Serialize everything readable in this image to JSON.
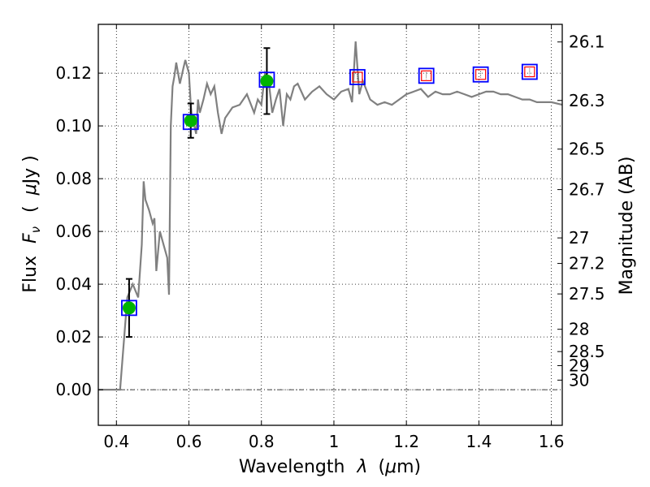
{
  "chart_data": {
    "type": "line",
    "x_label_parts": {
      "text": "Wavelength",
      "symbol": "λ",
      "unit_open": "(",
      "unit_mu": "μ",
      "unit_rest": "m)"
    },
    "y_label_parts": {
      "text": "Flux",
      "symbol": "F",
      "subscript": "ν",
      "unit_open": "(",
      "unit_mu": "μ",
      "unit_rest": "Jy )"
    },
    "y2_label": "Magnitude (AB)",
    "xlim": [
      0.35,
      1.63
    ],
    "ylim": [
      -0.0135,
      0.1385
    ],
    "x_ticks": [
      {
        "value": 0.4,
        "label": "0.4"
      },
      {
        "value": 0.6,
        "label": "0.6"
      },
      {
        "value": 0.8,
        "label": "0.8"
      },
      {
        "value": 1.0,
        "label": "1"
      },
      {
        "value": 1.2,
        "label": "1.2"
      },
      {
        "value": 1.4,
        "label": "1.4"
      },
      {
        "value": 1.6,
        "label": "1.6"
      }
    ],
    "y_ticks": [
      {
        "value": 0.0,
        "label": "0.00"
      },
      {
        "value": 0.02,
        "label": "0.02"
      },
      {
        "value": 0.04,
        "label": "0.04"
      },
      {
        "value": 0.06,
        "label": "0.06"
      },
      {
        "value": 0.08,
        "label": "0.08"
      },
      {
        "value": 0.1,
        "label": "0.10"
      },
      {
        "value": 0.12,
        "label": "0.12"
      }
    ],
    "y2_ticks": [
      {
        "mag": 26.1,
        "label": "26.1"
      },
      {
        "mag": 26.3,
        "label": "26.3"
      },
      {
        "mag": 26.5,
        "label": "26.5"
      },
      {
        "mag": 26.7,
        "label": "26.7"
      },
      {
        "mag": 27.0,
        "label": "27"
      },
      {
        "mag": 27.2,
        "label": "27.2"
      },
      {
        "mag": 27.5,
        "label": "27.5"
      },
      {
        "mag": 28.0,
        "label": "28"
      },
      {
        "mag": 28.5,
        "label": "28.5"
      },
      {
        "mag": 29.0,
        "label": "29"
      },
      {
        "mag": 30.0,
        "label": "30"
      }
    ],
    "grid": true,
    "zero_line": true,
    "series": [
      {
        "kind": "model_spectrum",
        "color": "#808080",
        "x": [
          0.35,
          0.41,
          0.43,
          0.445,
          0.46,
          0.47,
          0.475,
          0.48,
          0.49,
          0.5,
          0.505,
          0.51,
          0.52,
          0.53,
          0.54,
          0.545,
          0.55,
          0.555,
          0.56,
          0.565,
          0.575,
          0.585,
          0.59,
          0.6,
          0.605,
          0.61,
          0.615,
          0.62,
          0.625,
          0.63,
          0.64,
          0.65,
          0.66,
          0.67,
          0.68,
          0.69,
          0.7,
          0.72,
          0.74,
          0.76,
          0.78,
          0.79,
          0.8,
          0.81,
          0.82,
          0.83,
          0.84,
          0.85,
          0.86,
          0.87,
          0.88,
          0.89,
          0.9,
          0.92,
          0.94,
          0.96,
          0.98,
          1.0,
          1.02,
          1.04,
          1.05,
          1.06,
          1.07,
          1.08,
          1.1,
          1.12,
          1.14,
          1.16,
          1.18,
          1.2,
          1.22,
          1.24,
          1.26,
          1.28,
          1.3,
          1.32,
          1.34,
          1.36,
          1.38,
          1.4,
          1.42,
          1.44,
          1.46,
          1.48,
          1.5,
          1.52,
          1.54,
          1.56,
          1.58,
          1.6,
          1.63
        ],
        "y": [
          0.0,
          0.0,
          0.035,
          0.04,
          0.035,
          0.055,
          0.079,
          0.072,
          0.068,
          0.063,
          0.065,
          0.045,
          0.06,
          0.055,
          0.05,
          0.036,
          0.1,
          0.115,
          0.119,
          0.124,
          0.116,
          0.122,
          0.125,
          0.12,
          0.108,
          0.1,
          0.1,
          0.097,
          0.11,
          0.105,
          0.11,
          0.116,
          0.112,
          0.115,
          0.105,
          0.097,
          0.103,
          0.107,
          0.108,
          0.112,
          0.105,
          0.11,
          0.108,
          0.12,
          0.117,
          0.105,
          0.11,
          0.114,
          0.1,
          0.112,
          0.11,
          0.115,
          0.116,
          0.11,
          0.113,
          0.115,
          0.112,
          0.11,
          0.113,
          0.114,
          0.109,
          0.132,
          0.112,
          0.117,
          0.11,
          0.108,
          0.109,
          0.108,
          0.11,
          0.112,
          0.113,
          0.114,
          0.111,
          0.113,
          0.112,
          0.112,
          0.113,
          0.112,
          0.111,
          0.112,
          0.113,
          0.113,
          0.112,
          0.112,
          0.111,
          0.11,
          0.11,
          0.109,
          0.109,
          0.109,
          0.108
        ]
      },
      {
        "kind": "observed",
        "marker": "circle",
        "color": "#00b400",
        "x": [
          0.435,
          0.605,
          0.815
        ],
        "y": [
          0.031,
          0.102,
          0.117
        ],
        "yerr": [
          0.011,
          0.0065,
          0.0125
        ]
      },
      {
        "kind": "model_photometry",
        "marker": "square",
        "color": "#0000ff",
        "x": [
          0.435,
          0.605,
          0.815,
          1.065,
          1.255,
          1.405,
          1.54
        ],
        "y": [
          0.031,
          0.1015,
          0.1175,
          0.1185,
          0.119,
          0.1195,
          0.1205
        ]
      },
      {
        "kind": "upper_limits",
        "marker": "square",
        "color": "#ff0000",
        "x": [
          1.065,
          1.255,
          1.405,
          1.54
        ],
        "y": [
          0.1185,
          0.119,
          0.1195,
          0.1205
        ]
      }
    ]
  }
}
